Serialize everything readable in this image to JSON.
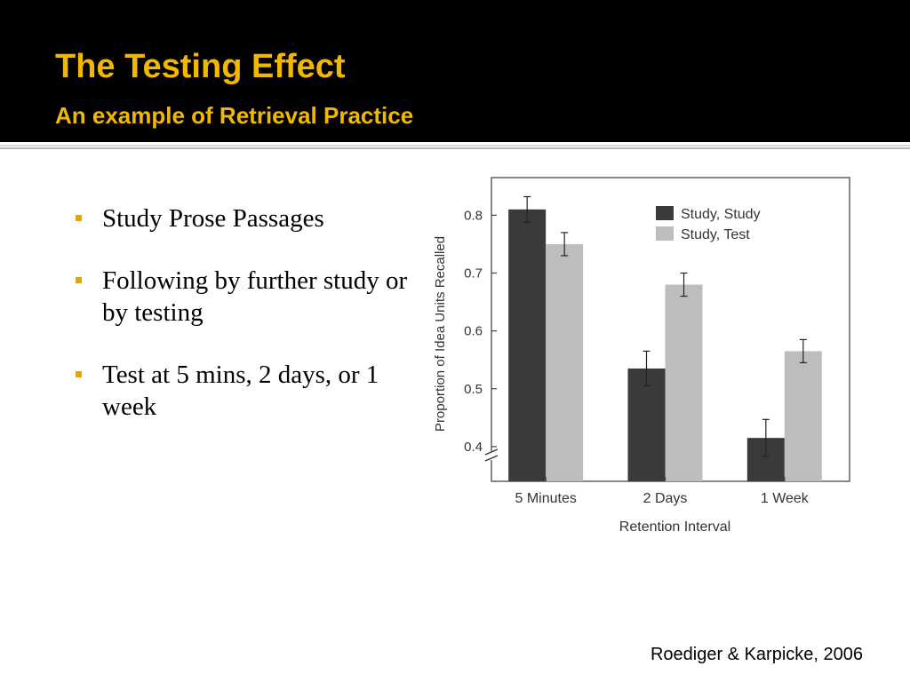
{
  "slide": {
    "title": "The Testing Effect",
    "subtitle": "An example of Retrieval Practice",
    "bullets": [
      "Study Prose Passages",
      "Following by further study or by testing",
      "Test at 5 mins, 2 days, or 1 week"
    ],
    "citation": "Roediger & Karpicke, 2006",
    "colors": {
      "header_bg": "#000000",
      "title": "#f2b800",
      "bullet_marker": "#e0a800"
    }
  },
  "chart_data": {
    "type": "bar",
    "categories": [
      "5 Minutes",
      "2 Days",
      "1 Week"
    ],
    "series": [
      {
        "name": "Study, Study",
        "values": [
          0.81,
          0.535,
          0.415
        ],
        "errors": [
          0.022,
          0.03,
          0.032
        ],
        "color": "#3a3a3a"
      },
      {
        "name": "Study, Test",
        "values": [
          0.75,
          0.68,
          0.565
        ],
        "errors": [
          0.02,
          0.02,
          0.02
        ],
        "color": "#bdbdbd"
      }
    ],
    "xlabel": "Retention Interval",
    "ylabel": "Proportion of Idea Units Recalled",
    "yticks": [
      "0.4",
      "0.5",
      "0.6",
      "0.7",
      "0.8"
    ],
    "ylim": [
      0.34,
      0.865
    ],
    "axis_break": true,
    "legend_position": "top-right",
    "grid": false
  }
}
